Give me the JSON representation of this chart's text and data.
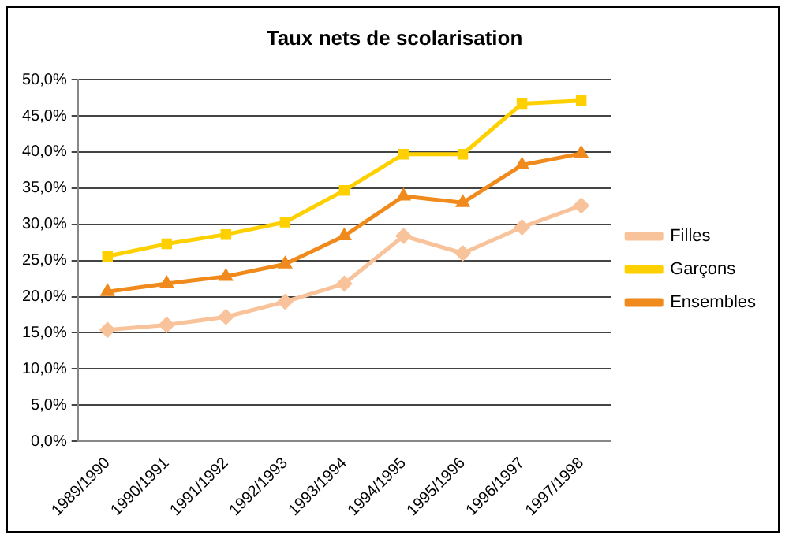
{
  "chart_data": {
    "type": "line",
    "title": "Taux nets de scolarisation",
    "categories": [
      "1989/1990",
      "1990/1991",
      "1991/1992",
      "1992/1993",
      "1993/1994",
      "1994/1995",
      "1995/1996",
      "1996/1997",
      "1997/1998"
    ],
    "series": [
      {
        "name": "Filles",
        "color": "#f8c39a",
        "marker": "diamond",
        "values": [
          15.4,
          16.1,
          17.2,
          19.3,
          21.8,
          28.4,
          26.0,
          29.6,
          32.6
        ]
      },
      {
        "name": "Garçons",
        "color": "#ffd000",
        "marker": "square",
        "values": [
          25.6,
          27.3,
          28.6,
          30.3,
          34.7,
          39.7,
          39.7,
          46.7,
          47.1
        ]
      },
      {
        "name": "Ensembles",
        "color": "#f08a1c",
        "marker": "triangle",
        "values": [
          20.7,
          21.8,
          22.8,
          24.5,
          28.4,
          33.9,
          33.0,
          38.2,
          39.8
        ]
      }
    ],
    "ylim": [
      0,
      50
    ],
    "yticks": [
      {
        "value": 0,
        "label": "0,0%"
      },
      {
        "value": 5,
        "label": "5,0%"
      },
      {
        "value": 10,
        "label": "10,0%"
      },
      {
        "value": 15,
        "label": "15,0%"
      },
      {
        "value": 20,
        "label": "20,0%"
      },
      {
        "value": 25,
        "label": "25,0%"
      },
      {
        "value": 30,
        "label": "30,0%"
      },
      {
        "value": 35,
        "label": "35,0%"
      },
      {
        "value": 40,
        "label": "40,0%"
      },
      {
        "value": 45,
        "label": "45,0%"
      },
      {
        "value": 50,
        "label": "50,0%"
      }
    ],
    "grid": "y",
    "legend": "right"
  }
}
